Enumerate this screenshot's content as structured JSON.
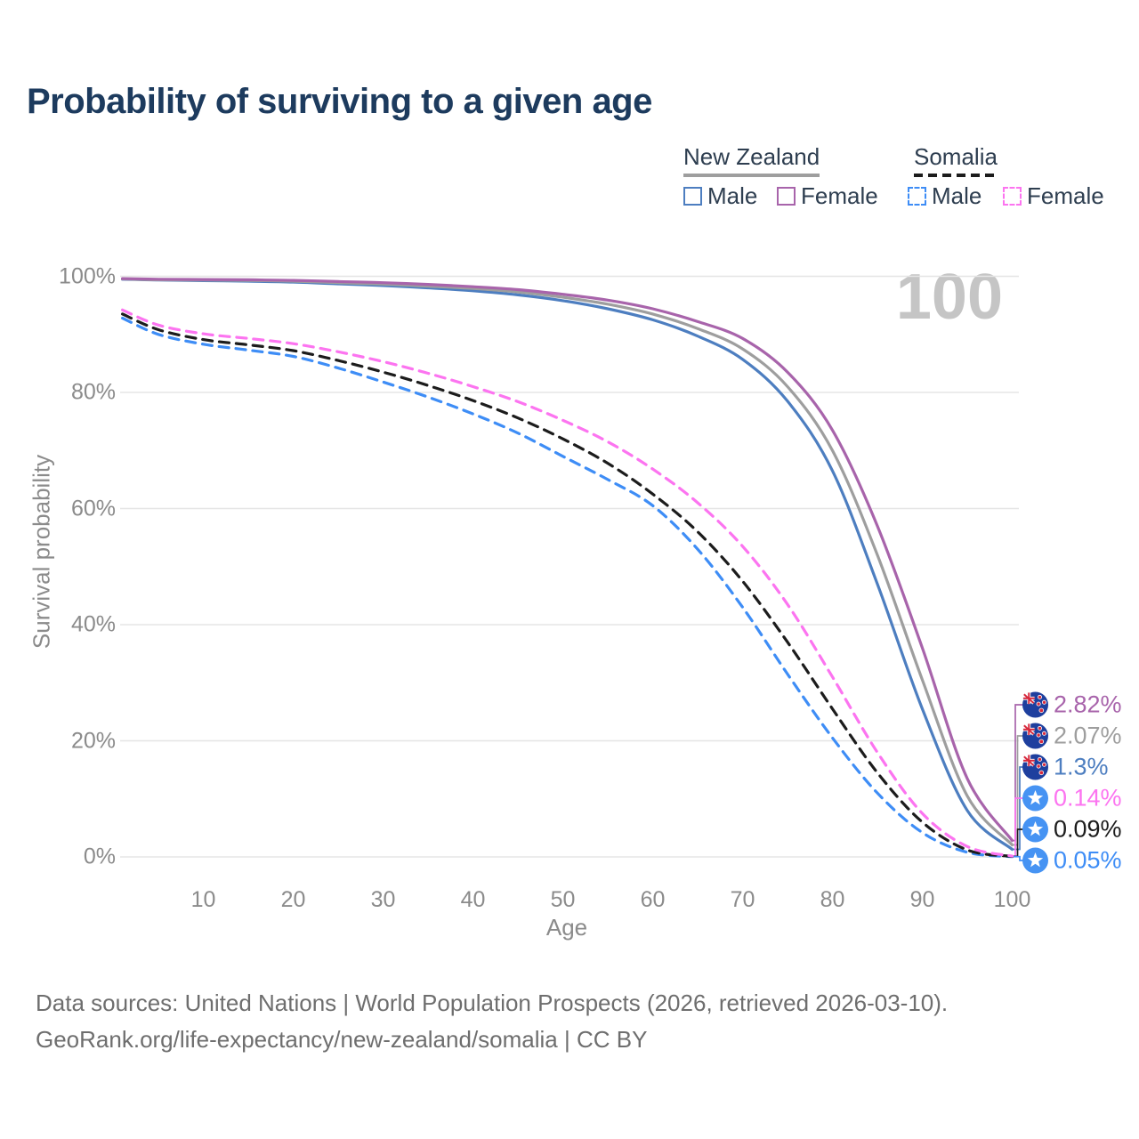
{
  "title": "Probability of surviving to a given age",
  "watermark": "100",
  "legend": {
    "groups": [
      {
        "label": "New Zealand",
        "underline": "solid",
        "items": [
          {
            "label": "Male",
            "color": "#4d7ec0",
            "dashed": false
          },
          {
            "label": "Female",
            "color": "#a864ab",
            "dashed": false
          }
        ]
      },
      {
        "label": "Somalia",
        "underline": "dashed",
        "items": [
          {
            "label": "Male",
            "color": "#3e8df6",
            "dashed": true
          },
          {
            "label": "Female",
            "color": "#fc74f0",
            "dashed": true
          }
        ]
      }
    ]
  },
  "y_axis": {
    "title": "Survival probability"
  },
  "x_axis": {
    "title": "Age"
  },
  "footer": {
    "line1": "Data sources: United Nations | World Population Prospects (2026, retrieved 2026-03-10).",
    "line2": "GeoRank.org/life-expectancy/new-zealand/somalia | CC BY"
  },
  "chart_data": {
    "type": "line",
    "title": "Probability of surviving to a given age",
    "xlabel": "Age",
    "ylabel": "Survival probability",
    "x_ticks": [
      10,
      20,
      30,
      40,
      50,
      60,
      70,
      80,
      90,
      100
    ],
    "y_ticks": [
      0,
      20,
      40,
      60,
      80,
      100
    ],
    "y_tick_suffix": "%",
    "xlim": [
      1,
      100
    ],
    "ylim": [
      0,
      100
    ],
    "grid": "horizontal",
    "legend_position": "top-right",
    "series": [
      {
        "name": "New Zealand Female",
        "country": "New Zealand",
        "flag": "nz",
        "color": "#a864ab",
        "dashed": false,
        "end_label": "2.82%",
        "end_value": 2.82,
        "points": [
          [
            1,
            99.6
          ],
          [
            5,
            99.5
          ],
          [
            10,
            99.45
          ],
          [
            15,
            99.4
          ],
          [
            20,
            99.3
          ],
          [
            25,
            99.1
          ],
          [
            30,
            98.9
          ],
          [
            35,
            98.6
          ],
          [
            40,
            98.2
          ],
          [
            45,
            97.7
          ],
          [
            50,
            96.9
          ],
          [
            55,
            95.9
          ],
          [
            60,
            94.4
          ],
          [
            65,
            92.2
          ],
          [
            70,
            89.3
          ],
          [
            75,
            83.5
          ],
          [
            80,
            73.5
          ],
          [
            85,
            57
          ],
          [
            90,
            36
          ],
          [
            95,
            13.5
          ],
          [
            100,
            2.82
          ]
        ]
      },
      {
        "name": "New Zealand Total",
        "country": "New Zealand",
        "flag": "nz",
        "color": "#9e9e9e",
        "dashed": false,
        "end_label": "2.07%",
        "end_value": 2.07,
        "points": [
          [
            1,
            99.55
          ],
          [
            5,
            99.4
          ],
          [
            10,
            99.35
          ],
          [
            15,
            99.3
          ],
          [
            20,
            99.15
          ],
          [
            25,
            98.9
          ],
          [
            30,
            98.65
          ],
          [
            35,
            98.3
          ],
          [
            40,
            97.9
          ],
          [
            45,
            97.3
          ],
          [
            50,
            96.4
          ],
          [
            55,
            95.2
          ],
          [
            60,
            93.5
          ],
          [
            65,
            91.0
          ],
          [
            70,
            87.5
          ],
          [
            75,
            81.0
          ],
          [
            80,
            70.0
          ],
          [
            85,
            52.0
          ],
          [
            90,
            30.5
          ],
          [
            95,
            10.5
          ],
          [
            100,
            2.07
          ]
        ]
      },
      {
        "name": "New Zealand Male",
        "country": "New Zealand",
        "flag": "nz",
        "color": "#4d7ec0",
        "dashed": false,
        "end_label": "1.3%",
        "end_value": 1.3,
        "points": [
          [
            1,
            99.5
          ],
          [
            5,
            99.35
          ],
          [
            10,
            99.25
          ],
          [
            15,
            99.15
          ],
          [
            20,
            99.0
          ],
          [
            25,
            98.7
          ],
          [
            30,
            98.4
          ],
          [
            35,
            98.0
          ],
          [
            40,
            97.5
          ],
          [
            45,
            96.8
          ],
          [
            50,
            95.8
          ],
          [
            55,
            94.4
          ],
          [
            60,
            92.5
          ],
          [
            65,
            89.7
          ],
          [
            70,
            85.7
          ],
          [
            75,
            78.5
          ],
          [
            80,
            66.5
          ],
          [
            85,
            47.0
          ],
          [
            90,
            25.5
          ],
          [
            95,
            8.0
          ],
          [
            100,
            1.3
          ]
        ]
      },
      {
        "name": "Somalia Female",
        "country": "Somalia",
        "flag": "so",
        "color": "#fc74f0",
        "dashed": true,
        "end_label": "0.14%",
        "end_value": 0.14,
        "points": [
          [
            1,
            94.2
          ],
          [
            5,
            91.6
          ],
          [
            10,
            90.1
          ],
          [
            15,
            89.3
          ],
          [
            20,
            88.4
          ],
          [
            25,
            87.0
          ],
          [
            30,
            85.3
          ],
          [
            35,
            83.3
          ],
          [
            40,
            81.0
          ],
          [
            45,
            78.4
          ],
          [
            50,
            75.2
          ],
          [
            55,
            71.5
          ],
          [
            60,
            66.8
          ],
          [
            65,
            61.0
          ],
          [
            70,
            53.5
          ],
          [
            75,
            43.5
          ],
          [
            80,
            31.0
          ],
          [
            85,
            18.0
          ],
          [
            90,
            7.5
          ],
          [
            95,
            1.8
          ],
          [
            100,
            0.14
          ]
        ]
      },
      {
        "name": "Somalia Total",
        "country": "Somalia",
        "flag": "so",
        "color": "#1c1c1c",
        "dashed": true,
        "end_label": "0.09%",
        "end_value": 0.09,
        "points": [
          [
            1,
            93.5
          ],
          [
            5,
            90.8
          ],
          [
            10,
            89.1
          ],
          [
            15,
            88.2
          ],
          [
            20,
            87.2
          ],
          [
            25,
            85.5
          ],
          [
            30,
            83.5
          ],
          [
            35,
            81.2
          ],
          [
            40,
            78.6
          ],
          [
            45,
            75.6
          ],
          [
            50,
            72.0
          ],
          [
            55,
            67.8
          ],
          [
            60,
            62.5
          ],
          [
            65,
            56.0
          ],
          [
            70,
            47.5
          ],
          [
            75,
            37.0
          ],
          [
            80,
            25.5
          ],
          [
            85,
            14.5
          ],
          [
            90,
            6.0
          ],
          [
            95,
            1.2
          ],
          [
            100,
            0.09
          ]
        ]
      },
      {
        "name": "Somalia Male",
        "country": "Somalia",
        "flag": "so",
        "color": "#3e8df6",
        "dashed": true,
        "end_label": "0.05%",
        "end_value": 0.05,
        "points": [
          [
            1,
            92.8
          ],
          [
            5,
            90.0
          ],
          [
            10,
            88.3
          ],
          [
            15,
            87.3
          ],
          [
            20,
            86.2
          ],
          [
            25,
            84.2
          ],
          [
            30,
            81.8
          ],
          [
            35,
            79.2
          ],
          [
            40,
            76.3
          ],
          [
            45,
            73.0
          ],
          [
            50,
            69.0
          ],
          [
            55,
            65.0
          ],
          [
            60,
            60.5
          ],
          [
            65,
            53.0
          ],
          [
            70,
            43.0
          ],
          [
            75,
            31.5
          ],
          [
            80,
            20.5
          ],
          [
            85,
            11.0
          ],
          [
            90,
            4.2
          ],
          [
            95,
            0.8
          ],
          [
            100,
            0.05
          ]
        ]
      }
    ]
  }
}
